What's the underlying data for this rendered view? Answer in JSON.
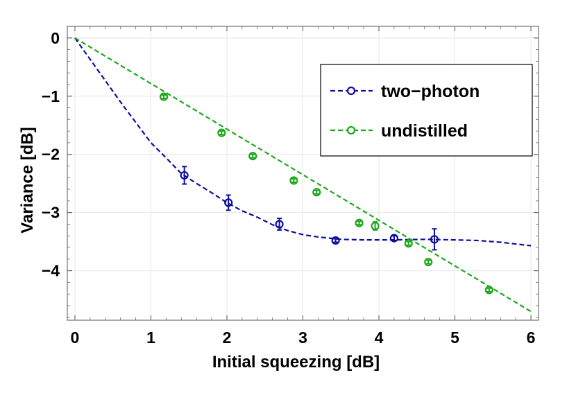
{
  "chart_data": {
    "type": "scatter",
    "title": "",
    "xlabel": "Initial squeezing [dB]",
    "ylabel": "Variance [dB]",
    "xlim": [
      -0.1,
      6.1
    ],
    "ylim": [
      -4.85,
      0.2
    ],
    "grid": true,
    "legend_position": "top-right",
    "xticks": [
      0,
      1,
      2,
      3,
      4,
      5,
      6
    ],
    "yticks": [
      0,
      -1,
      -2,
      -3,
      -4
    ],
    "xtick_labels": [
      "0",
      "1",
      "2",
      "3",
      "4",
      "5",
      "6"
    ],
    "ytick_labels": [
      "0",
      "−1",
      "−2",
      "−3",
      "−4"
    ],
    "series": [
      {
        "name": "two−photon",
        "color": "#0d0d9e",
        "points": [
          {
            "x": 1.44,
            "y": -2.36,
            "err": 0.15
          },
          {
            "x": 2.02,
            "y": -2.83,
            "err": 0.13
          },
          {
            "x": 2.69,
            "y": -3.2,
            "err": 0.1
          },
          {
            "x": 3.43,
            "y": -3.48,
            "err": 0.03
          },
          {
            "x": 4.2,
            "y": -3.44,
            "err": 0.04
          },
          {
            "x": 4.73,
            "y": -3.46,
            "err": 0.18
          }
        ],
        "fit": [
          [
            0,
            0
          ],
          [
            0.3,
            -0.55
          ],
          [
            0.6,
            -1.1
          ],
          [
            0.8,
            -1.45
          ],
          [
            1.0,
            -1.8
          ],
          [
            1.2,
            -2.06
          ],
          [
            1.4,
            -2.33
          ],
          [
            1.6,
            -2.5
          ],
          [
            1.8,
            -2.66
          ],
          [
            2.0,
            -2.83
          ],
          [
            2.2,
            -2.97
          ],
          [
            2.4,
            -3.08
          ],
          [
            2.6,
            -3.21
          ],
          [
            2.8,
            -3.31
          ],
          [
            3.0,
            -3.38
          ],
          [
            3.2,
            -3.42
          ],
          [
            3.5,
            -3.46
          ],
          [
            3.8,
            -3.47
          ],
          [
            4.2,
            -3.47
          ],
          [
            4.6,
            -3.46
          ],
          [
            5.0,
            -3.47
          ],
          [
            5.3,
            -3.48
          ],
          [
            5.6,
            -3.51
          ],
          [
            6.0,
            -3.57
          ]
        ]
      },
      {
        "name": "undistilled",
        "color": "#1aa81a",
        "points": [
          {
            "x": 1.17,
            "y": -1.01,
            "err": 0.03
          },
          {
            "x": 1.93,
            "y": -1.63,
            "err": 0.03
          },
          {
            "x": 2.34,
            "y": -2.03,
            "err": 0.03
          },
          {
            "x": 2.88,
            "y": -2.45,
            "err": 0.03
          },
          {
            "x": 3.18,
            "y": -2.65,
            "err": 0.03
          },
          {
            "x": 3.74,
            "y": -3.18,
            "err": 0.03
          },
          {
            "x": 3.95,
            "y": -3.23,
            "err": 0.07
          },
          {
            "x": 4.39,
            "y": -3.53,
            "err": 0.03
          },
          {
            "x": 4.65,
            "y": -3.85,
            "err": 0.03
          },
          {
            "x": 5.45,
            "y": -4.33,
            "err": 0.03
          }
        ],
        "fit": [
          [
            0,
            0
          ],
          [
            6.0,
            -4.7
          ]
        ]
      }
    ]
  }
}
